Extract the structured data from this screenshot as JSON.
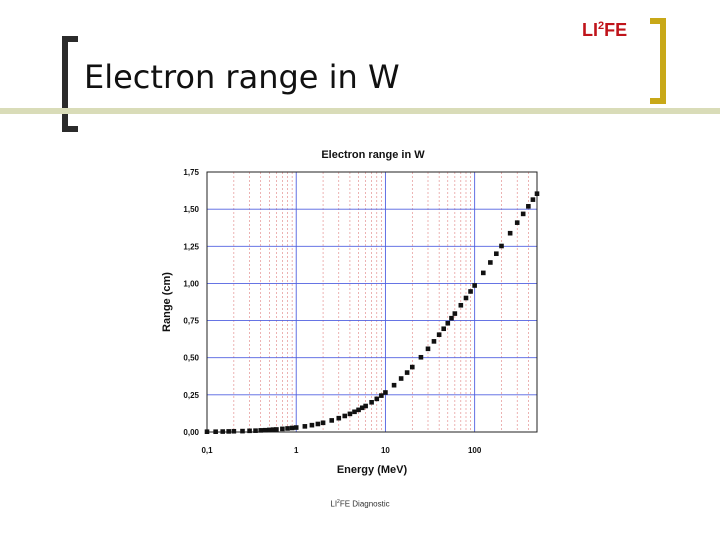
{
  "slide": {
    "title": "Electron range in W",
    "brand_prefix": "LI",
    "brand_sup": "2",
    "brand_suffix": "FE",
    "footer_prefix": "LI",
    "footer_sup": "2",
    "footer_suffix": "FE Diagnostic"
  },
  "colors": {
    "major_grid": "#5060e0",
    "minor_grid": "#e08080",
    "points": "#111111",
    "brand": "#c0141b",
    "bracket_left": "#2b2b2b",
    "bracket_right": "#c8a818"
  },
  "chart_data": {
    "type": "scatter",
    "title": "Electron range in W",
    "xlabel": "Energy (MeV)",
    "ylabel": "Range (cm)",
    "x_scale": "log",
    "xlim": [
      0.1,
      500
    ],
    "ylim": [
      0,
      1.75
    ],
    "x_ticks": [
      0.1,
      1,
      10,
      100
    ],
    "x_tick_labels": [
      "0,1",
      "1",
      "10",
      "100"
    ],
    "y_ticks": [
      0,
      0.25,
      0.5,
      0.75,
      1.0,
      1.25,
      1.5,
      1.75
    ],
    "y_tick_labels": [
      "0,00",
      "0,25",
      "0,50",
      "0,75",
      "1,00",
      "1,25",
      "1,50",
      "1,75"
    ],
    "grid": true,
    "series": [
      {
        "x": [
          0.1,
          0.125,
          0.15,
          0.175,
          0.2,
          0.25,
          0.3,
          0.35,
          0.4,
          0.45,
          0.5,
          0.55,
          0.6,
          0.7,
          0.8,
          0.9,
          1.0,
          1.25,
          1.5,
          1.75,
          2.0,
          2.5,
          3.0,
          3.5,
          4.0,
          4.5,
          5.0,
          5.5,
          6.0,
          7.0,
          8.0,
          9.0,
          10,
          12.5,
          15,
          17.5,
          20,
          25,
          30,
          35,
          40,
          45,
          50,
          55,
          60,
          70,
          80,
          90,
          100,
          125,
          150,
          175,
          200,
          250,
          300,
          350,
          400,
          450,
          500
        ],
        "y": [
          0.002,
          0.002,
          0.003,
          0.004,
          0.005,
          0.006,
          0.008,
          0.009,
          0.011,
          0.012,
          0.014,
          0.016,
          0.017,
          0.021,
          0.024,
          0.027,
          0.03,
          0.038,
          0.046,
          0.054,
          0.062,
          0.078,
          0.093,
          0.108,
          0.122,
          0.136,
          0.149,
          0.163,
          0.175,
          0.2,
          0.223,
          0.245,
          0.266,
          0.315,
          0.36,
          0.4,
          0.437,
          0.503,
          0.56,
          0.61,
          0.655,
          0.695,
          0.732,
          0.766,
          0.797,
          0.853,
          0.902,
          0.946,
          0.986,
          1.071,
          1.141,
          1.2,
          1.252,
          1.338,
          1.409,
          1.468,
          1.519,
          1.564,
          1.604
        ]
      }
    ]
  }
}
